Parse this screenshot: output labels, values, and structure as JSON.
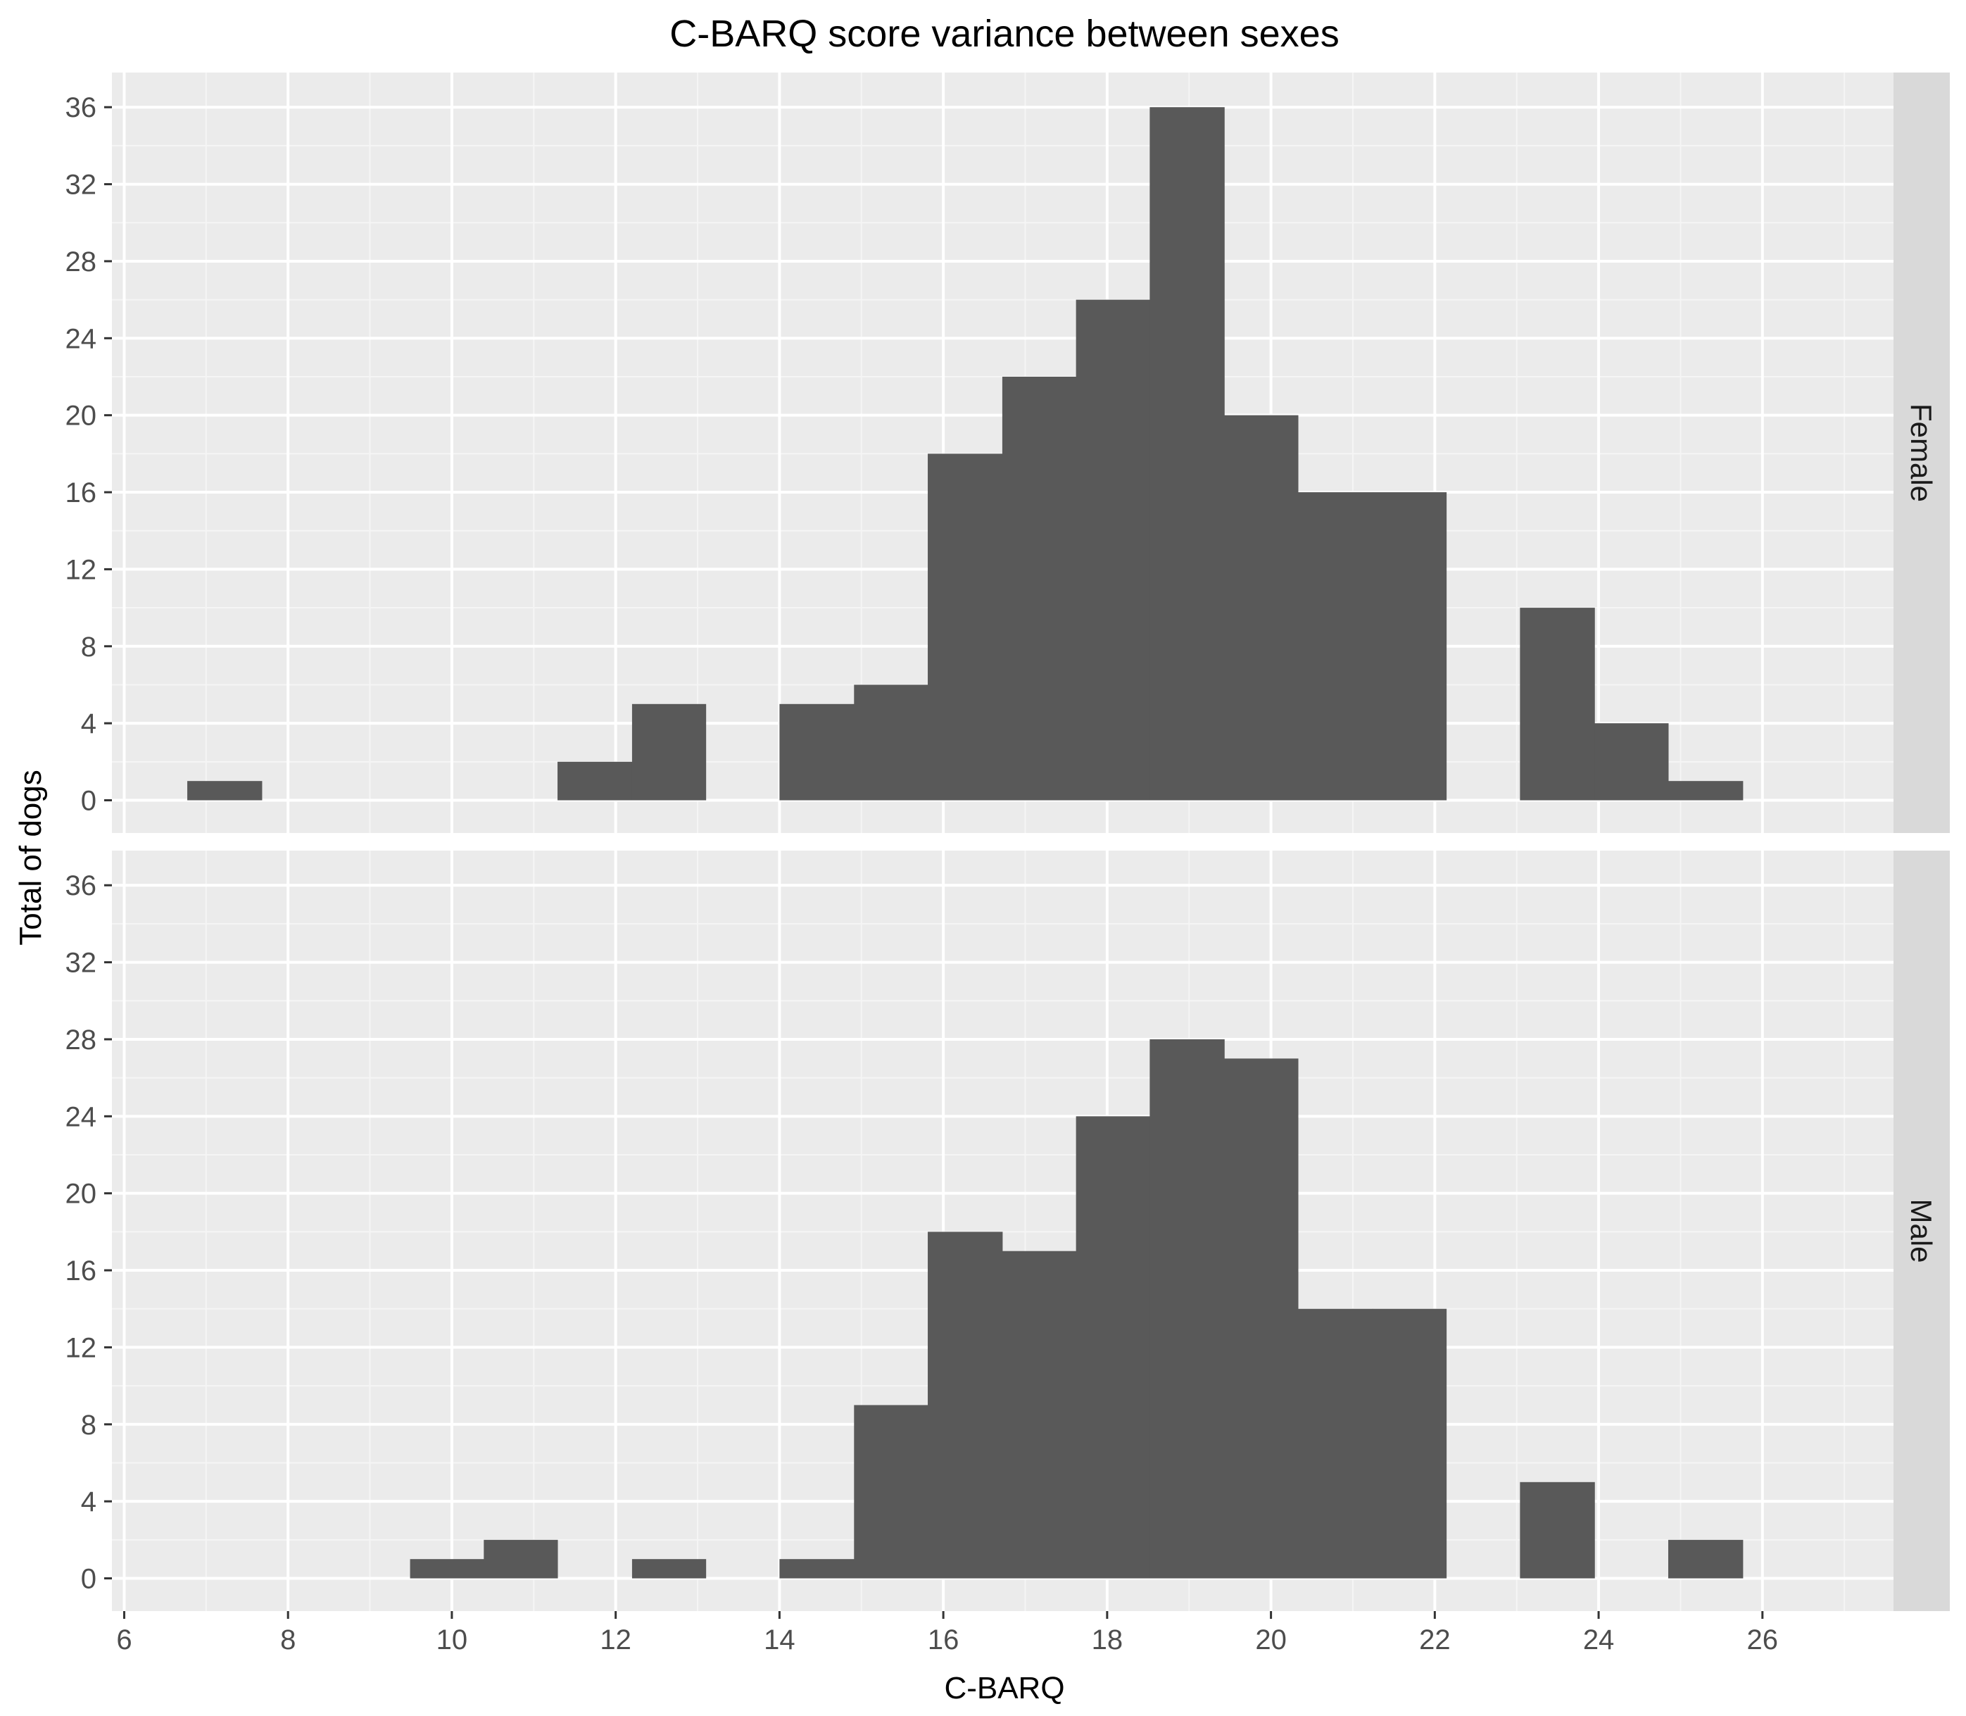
{
  "chart_data": {
    "type": "bar",
    "title": "C-BARQ score variance between sexes",
    "xlabel": "C-BARQ",
    "ylabel": "Total of dogs",
    "xlim": [
      5.85,
      27.6
    ],
    "ylim": [
      -1.7,
      37.8
    ],
    "x_ticks": [
      6,
      8,
      10,
      12,
      14,
      16,
      18,
      20,
      22,
      24,
      26
    ],
    "y_ticks": [
      0,
      4,
      8,
      12,
      16,
      20,
      24,
      28,
      32,
      36
    ],
    "bin_edges": [
      6.77,
      7.68,
      8.58,
      9.49,
      10.39,
      11.29,
      12.2,
      13.1,
      14.0,
      14.91,
      15.81,
      16.72,
      17.62,
      18.52,
      19.43,
      20.33,
      21.24,
      22.14,
      23.04,
      23.95,
      24.85,
      25.76,
      26.66
    ],
    "grid": true,
    "facets": [
      {
        "label": "Female",
        "counts": [
          1,
          0,
          0,
          0,
          0,
          2,
          5,
          0,
          5,
          6,
          18,
          22,
          26,
          36,
          20,
          16,
          16,
          0,
          10,
          4,
          1,
          0
        ]
      },
      {
        "label": "Male",
        "counts": [
          0,
          0,
          0,
          1,
          2,
          0,
          1,
          0,
          1,
          9,
          18,
          17,
          24,
          28,
          27,
          14,
          14,
          0,
          5,
          0,
          2,
          0
        ]
      }
    ],
    "colors": {
      "bar": "#595959",
      "panel_background": "#ebebeb",
      "strip_background": "#d9d9d9",
      "grid_major": "#ffffff",
      "grid_minor": "#f5f5f5",
      "tick": "#333333"
    }
  }
}
